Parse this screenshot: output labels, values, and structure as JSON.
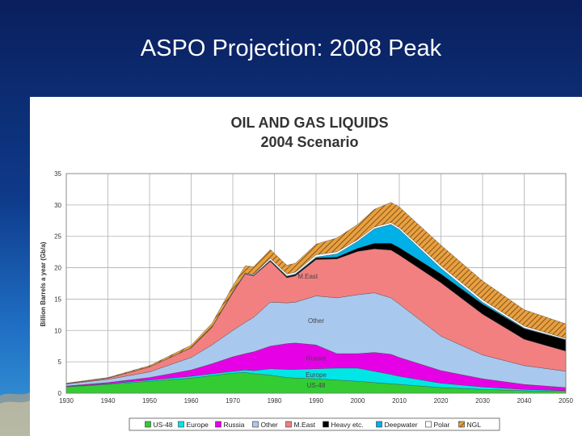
{
  "slide": {
    "title": "ASPO Projection:  2008 Peak"
  },
  "chart_data": {
    "type": "area",
    "stacked": true,
    "title": "OIL AND GAS LIQUIDS",
    "subtitle": "2004 Scenario",
    "ylabel": "Billion Barrels a year (Gb/a)",
    "xlabel": "",
    "xlim": [
      1930,
      2050
    ],
    "ylim": [
      0,
      35
    ],
    "x_ticks": [
      1930,
      1940,
      1950,
      1960,
      1970,
      1980,
      1990,
      2000,
      2010,
      2020,
      2030,
      2040,
      2050
    ],
    "y_ticks": [
      0,
      5,
      10,
      15,
      20,
      25,
      30,
      35
    ],
    "grid": true,
    "legend_position": "bottom",
    "x": [
      1930,
      1940,
      1950,
      1960,
      1965,
      1970,
      1973,
      1975,
      1979,
      1983,
      1985,
      1990,
      1995,
      2000,
      2004,
      2008,
      2010,
      2020,
      2030,
      2040,
      2050
    ],
    "series": [
      {
        "name": "US-48",
        "color": "#33cc33",
        "pattern": "solid",
        "values": [
          1.0,
          1.4,
          1.9,
          2.4,
          2.8,
          3.2,
          3.3,
          3.1,
          2.9,
          2.5,
          2.4,
          2.3,
          2.1,
          1.9,
          1.7,
          1.5,
          1.4,
          0.9,
          0.6,
          0.4,
          0.3
        ]
      },
      {
        "name": "Europe",
        "color": "#00e5e5",
        "pattern": "solid",
        "values": [
          0.05,
          0.1,
          0.2,
          0.3,
          0.3,
          0.3,
          0.4,
          0.5,
          1.0,
          1.3,
          1.4,
          1.6,
          1.9,
          2.1,
          1.8,
          1.5,
          1.3,
          0.7,
          0.4,
          0.2,
          0.1
        ]
      },
      {
        "name": "Russia",
        "color": "#e600e6",
        "pattern": "solid",
        "values": [
          0.1,
          0.2,
          0.4,
          1.0,
          1.6,
          2.3,
          2.6,
          3.0,
          3.6,
          4.1,
          4.2,
          3.8,
          2.3,
          2.3,
          3.0,
          3.2,
          3.0,
          2.0,
          1.3,
          0.8,
          0.5
        ]
      },
      {
        "name": "Other",
        "color": "#a9c8ee",
        "pattern": "solid",
        "values": [
          0.3,
          0.5,
          0.9,
          2.0,
          3.0,
          4.2,
          5.0,
          5.5,
          7.0,
          6.5,
          6.5,
          7.8,
          8.9,
          9.4,
          9.5,
          9.0,
          8.5,
          5.5,
          3.8,
          3.0,
          2.6
        ]
      },
      {
        "name": "M.East",
        "color": "#f28080",
        "pattern": "solid",
        "values": [
          0.1,
          0.2,
          0.8,
          1.5,
          2.8,
          6.0,
          7.7,
          6.6,
          6.5,
          4.0,
          4.2,
          5.8,
          6.2,
          6.9,
          7.0,
          7.6,
          7.8,
          8.5,
          6.5,
          4.2,
          3.2
        ]
      },
      {
        "name": "Heavy etc.",
        "color": "#000000",
        "pattern": "solid",
        "values": [
          0.0,
          0.0,
          0.0,
          0.05,
          0.05,
          0.1,
          0.1,
          0.1,
          0.15,
          0.2,
          0.2,
          0.25,
          0.3,
          0.5,
          0.9,
          1.1,
          1.2,
          1.4,
          1.6,
          1.7,
          1.8
        ]
      },
      {
        "name": "Deepwater",
        "color": "#00b0e6",
        "pattern": "solid",
        "values": [
          0.0,
          0.0,
          0.0,
          0.0,
          0.0,
          0.0,
          0.0,
          0.0,
          0.05,
          0.1,
          0.1,
          0.15,
          0.5,
          1.1,
          2.3,
          3.0,
          2.9,
          0.9,
          0.3,
          0.1,
          0.05
        ]
      },
      {
        "name": "Polar",
        "color": "#ffffff",
        "pattern": "solid",
        "values": [
          0.0,
          0.0,
          0.0,
          0.0,
          0.0,
          0.1,
          0.1,
          0.15,
          0.3,
          0.3,
          0.3,
          0.35,
          0.35,
          0.3,
          0.3,
          0.3,
          0.3,
          0.4,
          0.4,
          0.3,
          0.2
        ]
      },
      {
        "name": "NGL",
        "color": "#e8a040",
        "pattern": "hatched",
        "values": [
          0.05,
          0.1,
          0.2,
          0.4,
          0.6,
          0.9,
          1.1,
          1.2,
          1.4,
          1.4,
          1.4,
          1.7,
          2.2,
          2.4,
          2.8,
          3.2,
          3.3,
          3.3,
          3.0,
          2.6,
          2.3
        ]
      }
    ],
    "annotations": [
      {
        "text": "M.East",
        "x": 1988,
        "y": 18.3
      },
      {
        "text": "Other",
        "x": 1990,
        "y": 11.2
      },
      {
        "text": "Russia",
        "x": 1990,
        "y": 5.2
      },
      {
        "text": "Europe",
        "x": 1990,
        "y": 2.6
      },
      {
        "text": "US-48",
        "x": 1990,
        "y": 0.9
      }
    ]
  }
}
